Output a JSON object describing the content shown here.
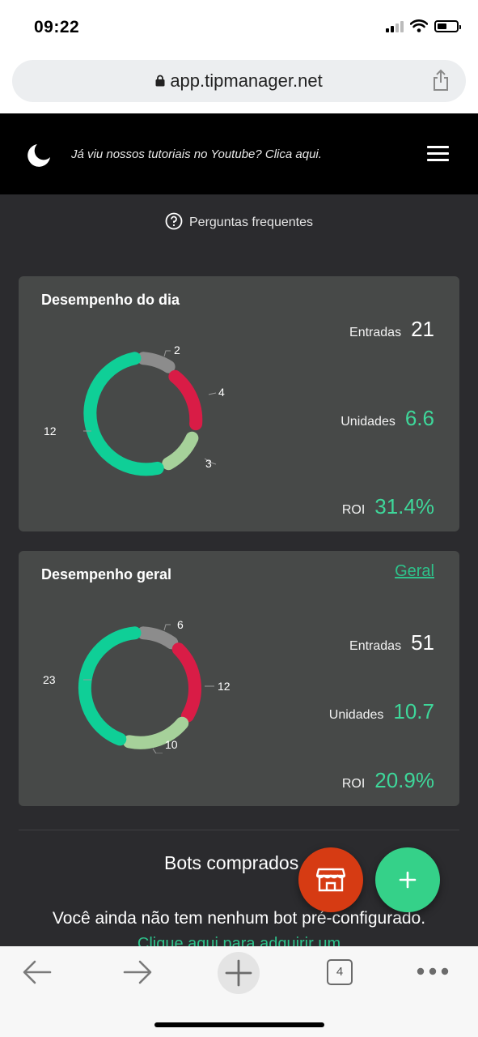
{
  "status_bar": {
    "time": "09:22"
  },
  "browser": {
    "url": "app.tipmanager.net"
  },
  "header": {
    "banner_text": "Já viu nossos tutoriais no Youtube? Clica aqui."
  },
  "faq": {
    "label": "Perguntas frequentes"
  },
  "daily": {
    "title": "Desempenho do dia",
    "entradas_label": "Entradas",
    "entradas_value": "21",
    "unidades_label": "Unidades",
    "unidades_value": "6.6",
    "roi_label": "ROI",
    "roi_value": "31.4%",
    "chart_labels": {
      "gray": "2",
      "red": "4",
      "lightgreen": "3",
      "green": "12"
    }
  },
  "overall": {
    "title": "Desempenho geral",
    "link": "Geral",
    "entradas_label": "Entradas",
    "entradas_value": "51",
    "unidades_label": "Unidades",
    "unidades_value": "10.7",
    "roi_label": "ROI",
    "roi_value": "20.9%",
    "chart_labels": {
      "gray": "6",
      "red": "12",
      "lightgreen": "10",
      "green": "23"
    }
  },
  "bots": {
    "title": "Bots comprados",
    "empty_text": "Você ainda não tem nenhum bot pré-configurado.",
    "link": "Clique aqui para adquirir um"
  },
  "toolbar": {
    "tab_count": "4"
  },
  "colors": {
    "green": "#0fcf97",
    "red": "#d91c46",
    "lightgreen": "#a6d19a",
    "gray": "#8c8c8c",
    "accent": "#3ed79a",
    "store_fab": "#d63b13",
    "add_fab": "#35d189"
  },
  "chart_data": [
    {
      "type": "pie",
      "title": "Desempenho do dia",
      "categories": [
        "gray",
        "red",
        "lightgreen",
        "green"
      ],
      "values": [
        2,
        4,
        3,
        12
      ]
    },
    {
      "type": "pie",
      "title": "Desempenho geral",
      "categories": [
        "gray",
        "red",
        "lightgreen",
        "green"
      ],
      "values": [
        6,
        12,
        10,
        23
      ]
    }
  ]
}
